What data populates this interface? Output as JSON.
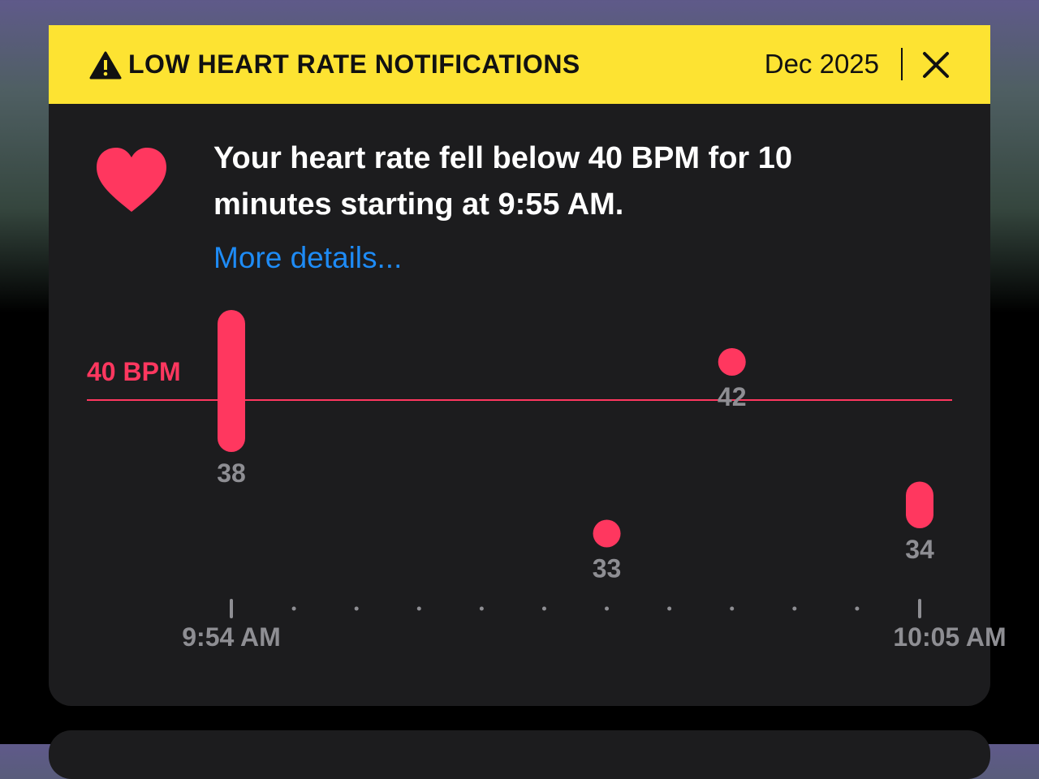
{
  "header": {
    "title": "LOW HEART RATE NOTIFICATIONS",
    "date": "Dec 2025"
  },
  "message": {
    "text": "Your heart rate fell below 40 BPM for 10 minutes starting at 9:55 AM.",
    "link": "More details..."
  },
  "chart_data": {
    "type": "range",
    "x": [
      0,
      6,
      8,
      11
    ],
    "series": [
      {
        "color": "#ff375f",
        "low": [
          38,
          33,
          42,
          34
        ],
        "high": [
          44,
          33,
          42,
          35
        ]
      }
    ],
    "threshold": {
      "value": 40,
      "label": "40 BPM"
    },
    "xlim": [
      0,
      11
    ],
    "ylim": [
      30,
      45
    ],
    "xticks": [
      {
        "value": 0,
        "label": "9:54 AM"
      },
      {
        "value": 11,
        "label": "10:05 AM"
      }
    ],
    "minor_xticks": [
      1,
      2,
      3,
      4,
      5,
      6,
      7,
      8,
      9,
      10
    ]
  }
}
